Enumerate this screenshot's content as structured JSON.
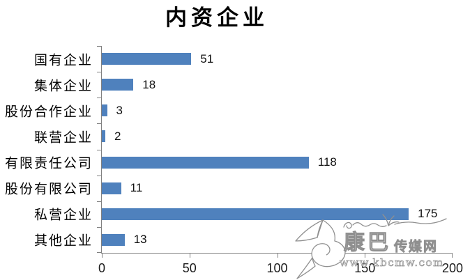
{
  "chart_data": {
    "type": "bar",
    "orientation": "horizontal",
    "title": "内资企业",
    "categories": [
      "国有企业",
      "集体企业",
      "股份合作企业",
      "联营企业",
      "有限责任公司",
      "股份有限公司",
      "私营企业",
      "其他企业"
    ],
    "values": [
      51,
      18,
      3,
      2,
      118,
      11,
      175,
      13
    ],
    "x_ticks": [
      "0",
      "50",
      "100",
      "150",
      "200"
    ],
    "xlim": [
      0,
      200
    ],
    "xlabel": "",
    "ylabel": "",
    "grid": false,
    "legend": "none",
    "data_labels": true,
    "bar_color": "#4F81BD",
    "axis_color": "#808080"
  },
  "watermark": {
    "name_main": "康巴",
    "name_suffix": "传媒网",
    "url": "www.kbcmw.com"
  }
}
